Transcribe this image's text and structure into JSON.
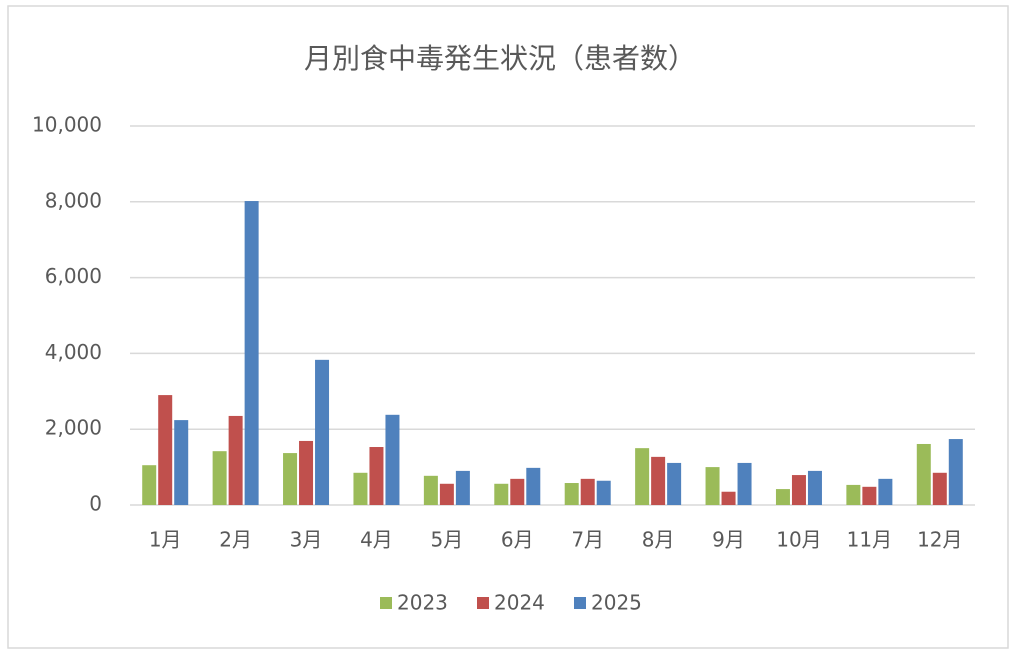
{
  "chart_data": {
    "type": "bar",
    "title": "月別食中毒発生状況（患者数）",
    "categories": [
      "1月",
      "2月",
      "3月",
      "4月",
      "5月",
      "6月",
      "7月",
      "8月",
      "9月",
      "10月",
      "11月",
      "12月"
    ],
    "series": [
      {
        "name": "2023",
        "color": "#9bbb59",
        "values": [
          1050,
          1420,
          1370,
          850,
          770,
          560,
          580,
          1500,
          1000,
          420,
          530,
          1610
        ]
      },
      {
        "name": "2024",
        "color": "#c0504d",
        "values": [
          2900,
          2350,
          1690,
          1530,
          560,
          690,
          690,
          1270,
          350,
          790,
          480,
          850
        ]
      },
      {
        "name": "2025",
        "color": "#4f81bd",
        "values": [
          2240,
          8020,
          3830,
          2380,
          900,
          980,
          640,
          1110,
          1110,
          900,
          690,
          1740
        ]
      }
    ],
    "ylim": [
      0,
      10000
    ],
    "yticks": [
      0,
      {
        "value": 2000,
        "label": "2,000"
      },
      {
        "value": 4000,
        "label": "4,000"
      },
      {
        "value": 6000,
        "label": "6,000"
      },
      {
        "value": 8000,
        "label": "8,000"
      },
      {
        "value": 10000,
        "label": "10,000"
      }
    ],
    "grid": true,
    "legend": "bottom"
  }
}
